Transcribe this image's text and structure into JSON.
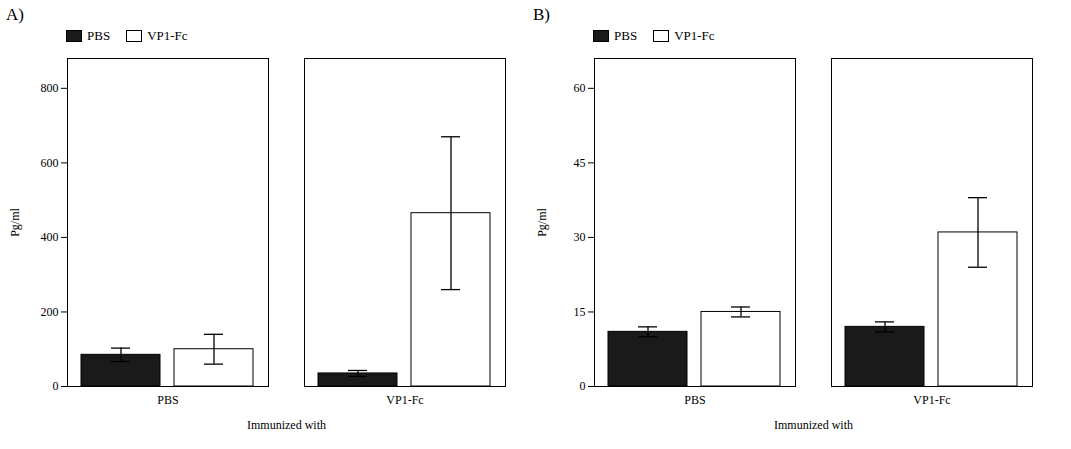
{
  "chart_data": [
    {
      "type": "bar",
      "title": "A)",
      "categories": [
        "PBS",
        "VP1-Fc"
      ],
      "series": [
        {
          "name": "PBS",
          "color": "#1a1a1a",
          "values": [
            85,
            35
          ],
          "errors": [
            18,
            8
          ]
        },
        {
          "name": "VP1-Fc",
          "color": "#ffffff",
          "values": [
            100,
            465
          ],
          "errors": [
            40,
            205
          ]
        }
      ],
      "xlabel": "Immunized with",
      "ylabel": "Pg/ml",
      "ylim": [
        0,
        880
      ],
      "yticks": [
        0,
        200,
        400,
        600,
        800
      ],
      "grid": false,
      "legend": "upper left"
    },
    {
      "type": "bar",
      "title": "B)",
      "categories": [
        "PBS",
        "VP1-Fc"
      ],
      "series": [
        {
          "name": "PBS",
          "color": "#1a1a1a",
          "values": [
            11,
            12
          ],
          "errors": [
            1.0,
            1.0
          ]
        },
        {
          "name": "VP1-Fc",
          "color": "#ffffff",
          "values": [
            15,
            31
          ],
          "errors": [
            1.0,
            7.0
          ]
        }
      ],
      "xlabel": "Immunized with",
      "ylabel": "Pg/ml",
      "ylim": [
        0,
        66
      ],
      "yticks": [
        0,
        15,
        30,
        45,
        60
      ],
      "grid": false,
      "legend": "upper left"
    }
  ]
}
